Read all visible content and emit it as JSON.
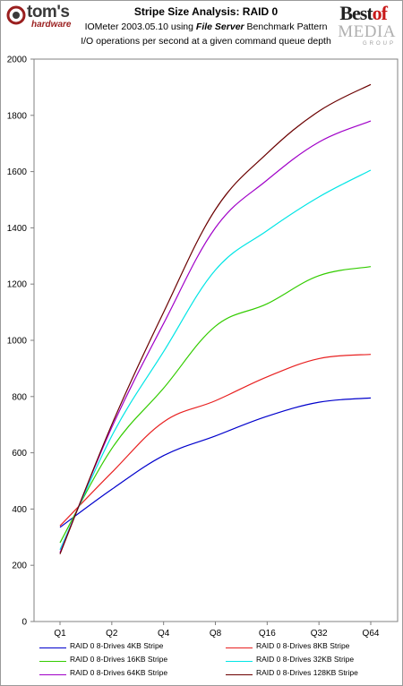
{
  "header": {
    "logo_left_name": "tom's",
    "logo_left_sub": "hardware",
    "title": "Stripe Size Analysis: RAID 0",
    "subtitle_prefix": "IOMeter 2003.05.10 using ",
    "subtitle_emph": "File Server",
    "subtitle_suffix": " Benchmark Pattern",
    "subtitle2": "I/O operations per second at a given command queue depth",
    "logo_right_best": "Best",
    "logo_right_of": "of",
    "logo_right_media": "MEDIA",
    "logo_right_group": "GROUP"
  },
  "chart_data": {
    "type": "line",
    "title": "Stripe Size Analysis: RAID 0",
    "xlabel": "",
    "ylabel": "",
    "categories": [
      "Q1",
      "Q2",
      "Q4",
      "Q8",
      "Q16",
      "Q32",
      "Q64"
    ],
    "ylim": [
      0,
      2000
    ],
    "yticks": [
      0,
      200,
      400,
      600,
      800,
      1000,
      1200,
      1400,
      1600,
      1800,
      2000
    ],
    "grid": false,
    "legend_position": "bottom",
    "series": [
      {
        "name": "RAID 0 8-Drives 4KB Stripe",
        "color": "#0000cc",
        "values": [
          335,
          470,
          590,
          660,
          730,
          780,
          795
        ]
      },
      {
        "name": "RAID 0 8-Drives 8KB Stripe",
        "color": "#e82020",
        "values": [
          340,
          530,
          710,
          785,
          870,
          935,
          950
        ]
      },
      {
        "name": "RAID 0 8-Drives 16KB Stripe",
        "color": "#33cc00",
        "values": [
          280,
          615,
          830,
          1050,
          1130,
          1230,
          1262
        ]
      },
      {
        "name": "RAID 0 8-Drives 32KB Stripe",
        "color": "#00e5e5",
        "values": [
          255,
          660,
          960,
          1250,
          1390,
          1510,
          1605
        ]
      },
      {
        "name": "RAID 0 8-Drives 64KB Stripe",
        "color": "#a000c8",
        "values": [
          245,
          690,
          1060,
          1400,
          1570,
          1705,
          1780
        ]
      },
      {
        "name": "RAID 0 8-Drives 128KB Stripe",
        "color": "#6b0000",
        "values": [
          240,
          700,
          1100,
          1465,
          1665,
          1815,
          1910
        ]
      }
    ]
  }
}
